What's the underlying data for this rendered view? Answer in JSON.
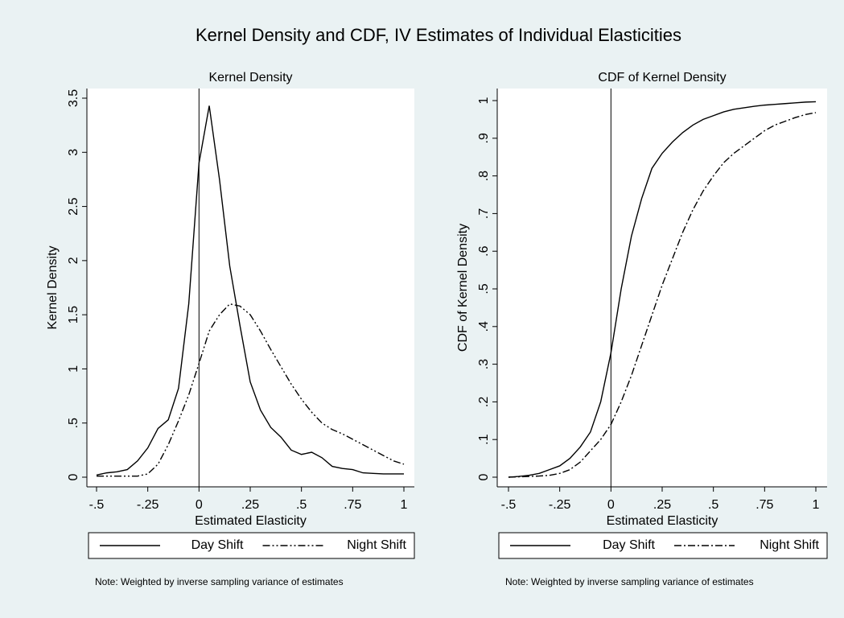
{
  "title": "Kernel Density and CDF, IV Estimates of Individual Elasticities",
  "chart_data": [
    {
      "type": "line",
      "title": "Kernel Density",
      "x_label": "Estimated Elasticity",
      "y_label": "Kernel Density",
      "x": [
        -0.5,
        -0.45,
        -0.4,
        -0.35,
        -0.3,
        -0.25,
        -0.2,
        -0.15,
        -0.1,
        -0.05,
        0,
        0.05,
        0.1,
        0.15,
        0.2,
        0.25,
        0.3,
        0.35,
        0.4,
        0.45,
        0.5,
        0.55,
        0.6,
        0.65,
        0.7,
        0.75,
        0.8,
        0.85,
        0.9,
        0.95,
        1
      ],
      "series": [
        {
          "name": "Day Shift",
          "color": "#000000",
          "dash": "none",
          "values": [
            0.02,
            0.04,
            0.05,
            0.07,
            0.15,
            0.27,
            0.45,
            0.53,
            0.82,
            1.6,
            2.9,
            3.43,
            2.75,
            1.95,
            1.4,
            0.88,
            0.62,
            0.46,
            0.37,
            0.25,
            0.21,
            0.23,
            0.18,
            0.1,
            0.08,
            0.07,
            0.04,
            0.035,
            0.03,
            0.03,
            0.03
          ]
        },
        {
          "name": "Night Shift",
          "color": "#000000",
          "dash": "9,3,2,3,2,3",
          "values": [
            0.01,
            0.01,
            0.01,
            0.01,
            0.01,
            0.03,
            0.12,
            0.3,
            0.52,
            0.76,
            1.05,
            1.35,
            1.5,
            1.6,
            1.58,
            1.5,
            1.35,
            1.18,
            1.02,
            0.86,
            0.72,
            0.6,
            0.5,
            0.44,
            0.4,
            0.35,
            0.3,
            0.25,
            0.2,
            0.15,
            0.12
          ]
        }
      ],
      "xlim": [
        -0.5,
        1
      ],
      "xticks": [
        {
          "value": -0.5,
          "label": "-.5"
        },
        {
          "value": -0.25,
          "label": "-.25"
        },
        0,
        {
          "value": 0.25,
          "label": ".25"
        },
        {
          "value": 0.5,
          "label": ".5"
        },
        {
          "value": 0.75,
          "label": ".75"
        },
        1
      ],
      "ylim": [
        0,
        3.5
      ],
      "yticks": [
        0,
        {
          "value": 0.5,
          "label": ".5"
        },
        1,
        1.5,
        2,
        2.5,
        3,
        3.5
      ],
      "xline": 0,
      "legend": "bottom",
      "note": "Note: Weighted by inverse sampling variance of estimates"
    },
    {
      "type": "line",
      "title": "CDF of Kernel Density",
      "x_label": "Estimated Elasticity",
      "y_label": "CDF of Kernel Density",
      "x": [
        -0.5,
        -0.45,
        -0.4,
        -0.35,
        -0.3,
        -0.25,
        -0.2,
        -0.15,
        -0.1,
        -0.05,
        0,
        0.05,
        0.1,
        0.15,
        0.2,
        0.25,
        0.3,
        0.35,
        0.4,
        0.45,
        0.5,
        0.55,
        0.6,
        0.65,
        0.7,
        0.75,
        0.8,
        0.85,
        0.9,
        0.95,
        1
      ],
      "series": [
        {
          "name": "Day Shift",
          "color": "#000000",
          "dash": "none",
          "values": [
            0,
            0.002,
            0.005,
            0.01,
            0.02,
            0.03,
            0.05,
            0.08,
            0.12,
            0.2,
            0.33,
            0.5,
            0.64,
            0.74,
            0.82,
            0.86,
            0.89,
            0.915,
            0.935,
            0.95,
            0.96,
            0.97,
            0.977,
            0.981,
            0.985,
            0.988,
            0.99,
            0.992,
            0.994,
            0.996,
            0.997
          ]
        },
        {
          "name": "Night Shift",
          "color": "#000000",
          "dash": "9,3,2,3",
          "values": [
            0,
            0.001,
            0.002,
            0.003,
            0.005,
            0.01,
            0.02,
            0.04,
            0.07,
            0.1,
            0.14,
            0.2,
            0.27,
            0.35,
            0.43,
            0.51,
            0.58,
            0.65,
            0.71,
            0.76,
            0.8,
            0.835,
            0.86,
            0.88,
            0.9,
            0.92,
            0.935,
            0.945,
            0.955,
            0.963,
            0.968
          ]
        }
      ],
      "xlim": [
        -0.5,
        1
      ],
      "xticks": [
        {
          "value": -0.5,
          "label": "-.5"
        },
        {
          "value": -0.25,
          "label": "-.25"
        },
        0,
        {
          "value": 0.25,
          "label": ".25"
        },
        {
          "value": 0.5,
          "label": ".5"
        },
        {
          "value": 0.75,
          "label": ".75"
        },
        1
      ],
      "ylim": [
        0,
        1
      ],
      "yticks": [
        0,
        {
          "value": 0.1,
          "label": ".1"
        },
        {
          "value": 0.2,
          "label": ".2"
        },
        {
          "value": 0.3,
          "label": ".3"
        },
        {
          "value": 0.4,
          "label": ".4"
        },
        {
          "value": 0.5,
          "label": ".5"
        },
        {
          "value": 0.6,
          "label": ".6"
        },
        {
          "value": 0.7,
          "label": ".7"
        },
        {
          "value": 0.8,
          "label": ".8"
        },
        {
          "value": 0.9,
          "label": ".9"
        },
        1
      ],
      "xline": 0,
      "legend": "bottom",
      "note": "Note: Weighted by inverse sampling variance of estimates"
    }
  ]
}
